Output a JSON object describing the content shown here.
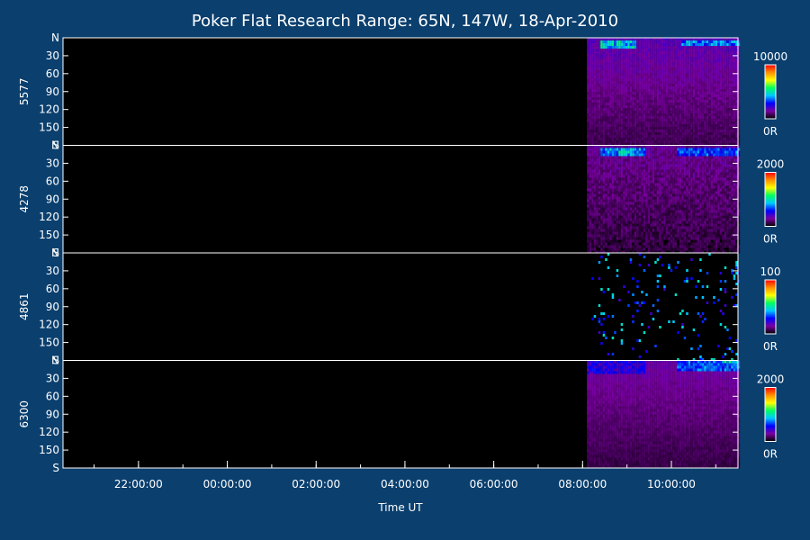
{
  "chart_data": {
    "type": "heatmap",
    "title": "Poker Flat Research Range: 65N, 147W, 18-Apr-2010",
    "xlabel": "Time UT",
    "x_ticks": [
      "22:00:00",
      "00:00:00",
      "02:00:00",
      "04:00:00",
      "06:00:00",
      "08:00:00",
      "10:00:00"
    ],
    "x_tick_hours": [
      22,
      24,
      26,
      28,
      30,
      32,
      34
    ],
    "x_range_hours": [
      20.3,
      35.5
    ],
    "data_start_hour": 32.1,
    "y_ticks": [
      "N",
      "30",
      "60",
      "90",
      "120",
      "150",
      "S"
    ],
    "y_tick_values": [
      0,
      30,
      60,
      90,
      120,
      150,
      180
    ],
    "y_range": [
      0,
      180
    ],
    "colormap": [
      "#000000",
      "#7a00a0",
      "#0000ff",
      "#00c8ff",
      "#00ff60",
      "#ffff00",
      "#ff9000",
      "#ff0000"
    ],
    "panels": [
      {
        "name": "5577",
        "colorbar_max": "10000",
        "colorbar_min": "0R",
        "background_level": 0.18,
        "noise": 0.05,
        "bright_bands": [
          {
            "t_start": 32.4,
            "t_end": 33.2,
            "elev_start": 2,
            "elev_end": 14,
            "level": 0.55
          },
          {
            "t_start": 34.2,
            "t_end": 35.5,
            "elev_start": 2,
            "elev_end": 12,
            "level": 0.45
          }
        ]
      },
      {
        "name": "4278",
        "colorbar_max": "2000",
        "colorbar_min": "0R",
        "background_level": 0.14,
        "noise": 0.08,
        "bright_bands": [
          {
            "t_start": 32.4,
            "t_end": 33.4,
            "elev_start": 4,
            "elev_end": 14,
            "level": 0.5
          },
          {
            "t_start": 34.1,
            "t_end": 35.5,
            "elev_start": 4,
            "elev_end": 14,
            "level": 0.42
          }
        ]
      },
      {
        "name": "4861",
        "colorbar_max": "100",
        "colorbar_min": "0R",
        "background_level": 0.02,
        "noise": 0.25,
        "bright_bands": []
      },
      {
        "name": "6300",
        "colorbar_max": "2000",
        "colorbar_min": "0R",
        "background_level": 0.16,
        "noise": 0.04,
        "bright_bands": [
          {
            "t_start": 32.1,
            "t_end": 33.4,
            "elev_start": 0,
            "elev_end": 22,
            "level": 0.3
          },
          {
            "t_start": 34.1,
            "t_end": 35.5,
            "elev_start": 0,
            "elev_end": 14,
            "level": 0.42
          },
          {
            "t_start": 35.1,
            "t_end": 35.5,
            "elev_start": 0,
            "elev_end": 4,
            "level": 0.6
          }
        ]
      }
    ]
  }
}
